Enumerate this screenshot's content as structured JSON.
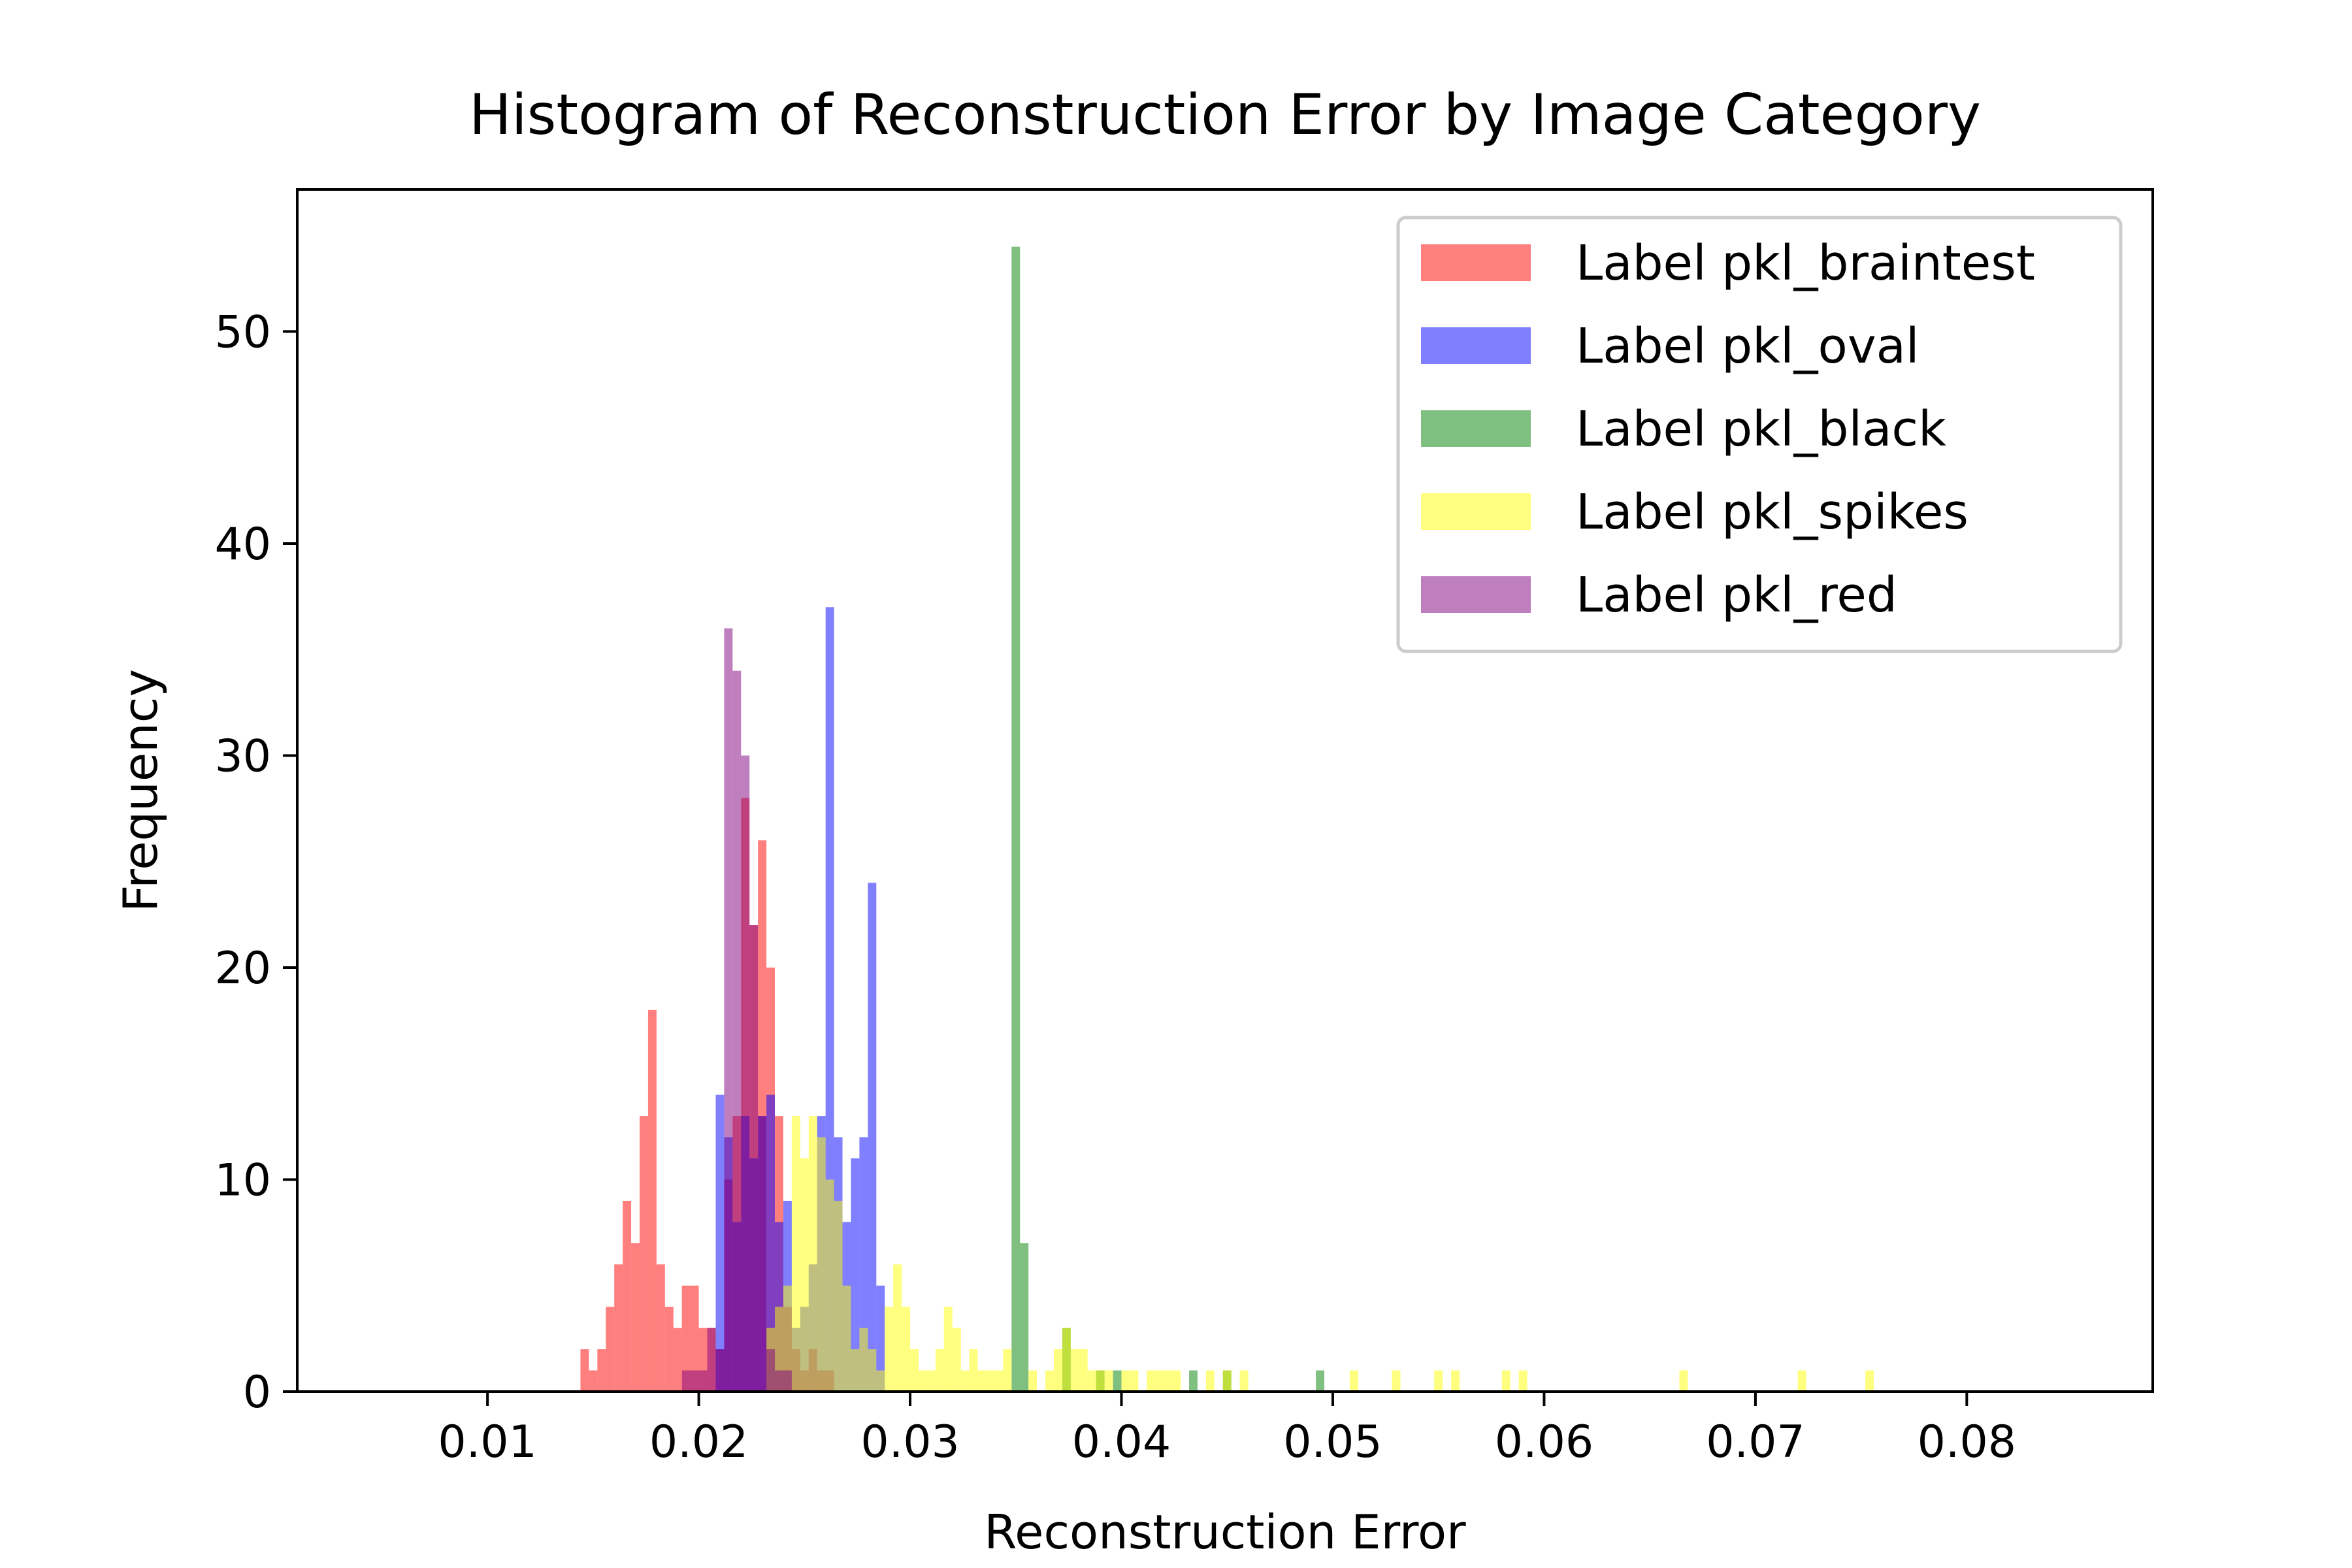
{
  "chart_data": {
    "type": "histogram",
    "title": "Histogram of Reconstruction Error by Image Category",
    "xlabel": "Reconstruction Error",
    "ylabel": "Frequency",
    "xlim": [
      0.001,
      0.0888
    ],
    "ylim": [
      0,
      56.7
    ],
    "xticks": [
      0.01,
      0.02,
      0.03,
      0.04,
      0.05,
      0.06,
      0.07,
      0.08
    ],
    "xtick_labels": [
      "0.01",
      "0.02",
      "0.03",
      "0.04",
      "0.05",
      "0.06",
      "0.07",
      "0.08"
    ],
    "yticks": [
      0,
      10,
      20,
      30,
      40,
      50
    ],
    "ytick_labels": [
      "0",
      "10",
      "20",
      "30",
      "40",
      "50"
    ],
    "grid": false,
    "legend_position": "top-right",
    "bin_width": 0.0004,
    "series": [
      {
        "name": "Label pkl_braintest",
        "color": "#ff0000",
        "alpha": 0.5,
        "bins": [
          [
            0.0144,
            2
          ],
          [
            0.0148,
            1
          ],
          [
            0.0152,
            2
          ],
          [
            0.0156,
            4
          ],
          [
            0.016,
            6
          ],
          [
            0.0164,
            9
          ],
          [
            0.0168,
            7
          ],
          [
            0.0172,
            13
          ],
          [
            0.0176,
            18
          ],
          [
            0.018,
            6
          ],
          [
            0.0184,
            4
          ],
          [
            0.0188,
            3
          ],
          [
            0.0192,
            5
          ],
          [
            0.0196,
            5
          ],
          [
            0.02,
            3
          ],
          [
            0.0204,
            3
          ],
          [
            0.0208,
            2
          ],
          [
            0.0212,
            10
          ],
          [
            0.0216,
            13
          ],
          [
            0.022,
            28
          ],
          [
            0.0224,
            22
          ],
          [
            0.0228,
            26
          ],
          [
            0.0232,
            20
          ],
          [
            0.0236,
            13
          ],
          [
            0.024,
            4
          ],
          [
            0.0244,
            2
          ],
          [
            0.0248,
            1
          ],
          [
            0.0252,
            2
          ],
          [
            0.0256,
            1
          ],
          [
            0.026,
            1
          ]
        ]
      },
      {
        "name": "Label pkl_oval",
        "color": "#0000ff",
        "alpha": 0.5,
        "bins": [
          [
            0.0208,
            14
          ],
          [
            0.0212,
            12
          ],
          [
            0.0216,
            8
          ],
          [
            0.022,
            13
          ],
          [
            0.0224,
            11
          ],
          [
            0.0228,
            13
          ],
          [
            0.0232,
            14
          ],
          [
            0.0236,
            8
          ],
          [
            0.024,
            9
          ],
          [
            0.0244,
            3
          ],
          [
            0.0248,
            4
          ],
          [
            0.0252,
            6
          ],
          [
            0.0256,
            13
          ],
          [
            0.026,
            37
          ],
          [
            0.0264,
            12
          ],
          [
            0.0268,
            8
          ],
          [
            0.0272,
            11
          ],
          [
            0.0276,
            12
          ],
          [
            0.028,
            24
          ],
          [
            0.0284,
            5
          ]
        ]
      },
      {
        "name": "Label pkl_black",
        "color": "#008000",
        "alpha": 0.5,
        "bins": [
          [
            0.0348,
            54
          ],
          [
            0.0352,
            7
          ],
          [
            0.0372,
            3
          ],
          [
            0.0388,
            1
          ],
          [
            0.0396,
            1
          ],
          [
            0.0432,
            1
          ],
          [
            0.0448,
            1
          ],
          [
            0.0492,
            1
          ]
        ]
      },
      {
        "name": "Label pkl_spikes",
        "color": "#ffff00",
        "alpha": 0.5,
        "bins": [
          [
            0.0232,
            3
          ],
          [
            0.0236,
            4
          ],
          [
            0.024,
            5
          ],
          [
            0.0244,
            13
          ],
          [
            0.0248,
            11
          ],
          [
            0.0252,
            13
          ],
          [
            0.0256,
            12
          ],
          [
            0.026,
            10
          ],
          [
            0.0264,
            9
          ],
          [
            0.0268,
            5
          ],
          [
            0.0272,
            2
          ],
          [
            0.0276,
            3
          ],
          [
            0.028,
            2
          ],
          [
            0.0284,
            1
          ],
          [
            0.0288,
            4
          ],
          [
            0.0292,
            6
          ],
          [
            0.0296,
            4
          ],
          [
            0.03,
            2
          ],
          [
            0.0304,
            1
          ],
          [
            0.0308,
            1
          ],
          [
            0.0312,
            2
          ],
          [
            0.0316,
            4
          ],
          [
            0.032,
            3
          ],
          [
            0.0324,
            1
          ],
          [
            0.0328,
            2
          ],
          [
            0.0332,
            1
          ],
          [
            0.0336,
            1
          ],
          [
            0.034,
            1
          ],
          [
            0.0344,
            2
          ],
          [
            0.0356,
            1
          ],
          [
            0.0364,
            1
          ],
          [
            0.0368,
            2
          ],
          [
            0.0372,
            3
          ],
          [
            0.0376,
            2
          ],
          [
            0.038,
            2
          ],
          [
            0.0384,
            1
          ],
          [
            0.0388,
            1
          ],
          [
            0.0392,
            1
          ],
          [
            0.04,
            1
          ],
          [
            0.0404,
            1
          ],
          [
            0.0412,
            1
          ],
          [
            0.0416,
            1
          ],
          [
            0.042,
            1
          ],
          [
            0.0424,
            1
          ],
          [
            0.044,
            1
          ],
          [
            0.0448,
            1
          ],
          [
            0.0456,
            1
          ],
          [
            0.0508,
            1
          ],
          [
            0.0528,
            1
          ],
          [
            0.0548,
            1
          ],
          [
            0.0556,
            1
          ],
          [
            0.058,
            1
          ],
          [
            0.0588,
            1
          ],
          [
            0.0664,
            1
          ],
          [
            0.072,
            1
          ],
          [
            0.0752,
            1
          ]
        ]
      },
      {
        "name": "Label pkl_red",
        "color": "#800080",
        "alpha": 0.5,
        "bins": [
          [
            0.0192,
            1
          ],
          [
            0.0196,
            1
          ],
          [
            0.02,
            1
          ],
          [
            0.0204,
            3
          ],
          [
            0.0208,
            2
          ],
          [
            0.0212,
            36
          ],
          [
            0.0216,
            34
          ],
          [
            0.022,
            30
          ],
          [
            0.0224,
            22
          ],
          [
            0.0228,
            13
          ],
          [
            0.0232,
            2
          ],
          [
            0.0236,
            1
          ],
          [
            0.024,
            1
          ]
        ]
      }
    ]
  }
}
